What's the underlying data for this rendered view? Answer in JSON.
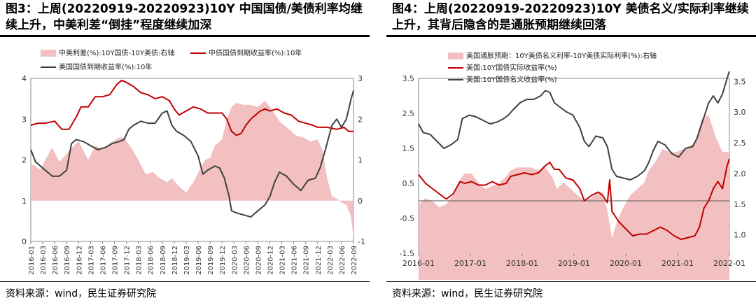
{
  "chart_data": [
    {
      "type": "line",
      "title": "图3：上周(20220919-20220923)10Y 中国国债/美债利率均继续上升，中美利差“倒挂”程度继续加深",
      "source": "资料来源：wind，民生证券研究院",
      "x_ticks": [
        "2016-01",
        "2016-03",
        "2016-06",
        "2016-09",
        "2016-12",
        "2017-03",
        "2017-06",
        "2017-09",
        "2017-12",
        "2018-03",
        "2018-06",
        "2018-09",
        "2018-12",
        "2019-03",
        "2019-06",
        "2019-09",
        "2019-12",
        "2020-03",
        "2020-06",
        "2020-09",
        "2020-12",
        "2021-03",
        "2021-06",
        "2021-09",
        "2021-12",
        "2022-03",
        "2022-06",
        "2022-09"
      ],
      "y_left": {
        "ticks": [
          0,
          1,
          2,
          3,
          4
        ],
        "range": [
          0,
          4
        ]
      },
      "y_right": {
        "ticks": [
          -1,
          0,
          1,
          2,
          3
        ],
        "range": [
          -1,
          3
        ]
      },
      "legend": [
        "中美利差(%):10Y国债-10Y美债:右轴",
        "中债国债到期收益率(%):10年",
        "美国国债到期收益率(%):10年"
      ],
      "x_range": [
        2016.0,
        2022.75
      ],
      "series": [
        {
          "name": "中美利差(%):10Y国债-10Y美债:右轴",
          "style": "area",
          "color": "#f2c0c0",
          "axis": "right",
          "x": [
            2016.0,
            2016.1,
            2016.2,
            2016.3,
            2016.45,
            2016.6,
            2016.75,
            2016.9,
            2017.0,
            2017.2,
            2017.35,
            2017.5,
            2017.7,
            2017.85,
            2017.95,
            2018.1,
            2018.25,
            2018.4,
            2018.55,
            2018.7,
            2018.85,
            2018.95,
            2019.1,
            2019.25,
            2019.4,
            2019.55,
            2019.65,
            2019.75,
            2019.85,
            2020.0,
            2020.1,
            2020.2,
            2020.3,
            2020.45,
            2020.6,
            2020.75,
            2020.9,
            2021.0,
            2021.2,
            2021.4,
            2021.55,
            2021.7,
            2021.85,
            2022.0,
            2022.1,
            2022.2,
            2022.3,
            2022.4,
            2022.5,
            2022.6,
            2022.7,
            2022.75
          ],
          "y": [
            0.9,
            0.85,
            0.75,
            1.0,
            1.3,
            0.95,
            1.15,
            1.35,
            1.45,
            1.0,
            1.35,
            1.25,
            1.45,
            1.55,
            1.55,
            1.3,
            1.0,
            0.65,
            0.7,
            0.55,
            0.45,
            0.55,
            0.35,
            0.2,
            0.45,
            0.8,
            1.0,
            1.05,
            1.35,
            1.5,
            2.0,
            2.3,
            2.4,
            2.35,
            2.35,
            2.3,
            2.45,
            2.3,
            1.95,
            1.75,
            1.6,
            1.55,
            1.45,
            1.5,
            1.25,
            0.55,
            0.1,
            0.05,
            -0.05,
            -0.1,
            -0.4,
            -0.9
          ]
        },
        {
          "name": "中债国债到期收益率(%):10年",
          "style": "line",
          "color": "#c00000",
          "axis": "left",
          "x": [
            2016.0,
            2016.15,
            2016.3,
            2016.5,
            2016.65,
            2016.8,
            2016.95,
            2017.05,
            2017.2,
            2017.35,
            2017.5,
            2017.65,
            2017.8,
            2017.9,
            2018.0,
            2018.15,
            2018.3,
            2018.45,
            2018.6,
            2018.75,
            2018.9,
            2019.0,
            2019.1,
            2019.25,
            2019.4,
            2019.55,
            2019.7,
            2019.85,
            2020.0,
            2020.1,
            2020.2,
            2020.3,
            2020.4,
            2020.5,
            2020.6,
            2020.7,
            2020.8,
            2020.9,
            2021.0,
            2021.15,
            2021.3,
            2021.45,
            2021.6,
            2021.75,
            2021.9,
            2022.0,
            2022.2,
            2022.4,
            2022.55,
            2022.65,
            2022.75
          ],
          "y": [
            2.85,
            2.9,
            2.9,
            2.95,
            2.75,
            2.75,
            3.05,
            3.3,
            3.3,
            3.55,
            3.55,
            3.6,
            3.85,
            3.95,
            3.9,
            3.8,
            3.65,
            3.6,
            3.5,
            3.55,
            3.45,
            3.25,
            3.1,
            3.2,
            3.3,
            3.25,
            3.15,
            3.15,
            3.15,
            3.0,
            2.7,
            2.6,
            2.65,
            2.85,
            3.0,
            3.1,
            3.2,
            3.25,
            3.2,
            3.25,
            3.15,
            3.1,
            2.95,
            2.9,
            2.85,
            2.8,
            2.8,
            2.75,
            2.8,
            2.7,
            2.7
          ]
        },
        {
          "name": "美国国债到期收益率(%):10年",
          "style": "line",
          "color": "#404040",
          "axis": "left",
          "x": [
            2016.0,
            2016.1,
            2016.2,
            2016.3,
            2016.45,
            2016.6,
            2016.75,
            2016.85,
            2016.95,
            2017.1,
            2017.25,
            2017.4,
            2017.55,
            2017.7,
            2017.85,
            2017.95,
            2018.05,
            2018.15,
            2018.3,
            2018.45,
            2018.6,
            2018.75,
            2018.85,
            2018.95,
            2019.05,
            2019.2,
            2019.35,
            2019.5,
            2019.6,
            2019.7,
            2019.85,
            2019.95,
            2020.05,
            2020.15,
            2020.2,
            2020.3,
            2020.45,
            2020.6,
            2020.75,
            2020.9,
            2021.0,
            2021.1,
            2021.2,
            2021.35,
            2021.5,
            2021.65,
            2021.8,
            2021.95,
            2022.05,
            2022.15,
            2022.3,
            2022.4,
            2022.5,
            2022.6,
            2022.7,
            2022.75
          ],
          "y": [
            2.25,
            1.95,
            1.85,
            1.75,
            1.6,
            1.6,
            1.75,
            2.4,
            2.5,
            2.45,
            2.35,
            2.25,
            2.3,
            2.4,
            2.45,
            2.5,
            2.75,
            2.85,
            2.95,
            2.9,
            2.9,
            3.15,
            3.2,
            2.85,
            2.7,
            2.6,
            2.45,
            2.1,
            1.65,
            1.75,
            1.85,
            1.8,
            1.55,
            1.1,
            0.75,
            0.7,
            0.65,
            0.6,
            0.75,
            0.9,
            1.1,
            1.45,
            1.7,
            1.6,
            1.4,
            1.25,
            1.5,
            1.55,
            1.8,
            2.2,
            2.85,
            3.0,
            2.8,
            3.0,
            3.5,
            3.7
          ]
        }
      ]
    },
    {
      "type": "line",
      "title": "图4：上周(20220919-20220923)10Y 美债名义/实际利率继续上升，其背后隐含的是通胀预期继续回落",
      "source": "资料来源：wind，民生证券研究院",
      "x_ticks": [
        "2016-01",
        "2017-01",
        "2018-01",
        "2019-01",
        "2020-01",
        "2021-01",
        "2022-01"
      ],
      "y_left": {
        "ticks": [
          -1.5,
          -0.5,
          0.5,
          1.5,
          2.5,
          3.5
        ],
        "range": [
          -1.5,
          3.5
        ]
      },
      "y_right": {
        "ticks": [
          1.0,
          1.5,
          2.0,
          2.5,
          3.0,
          3.5
        ],
        "range": [
          0.7,
          3.55
        ]
      },
      "legend": [
        "美国通胀预期：10Y美债名义利率-10Y美债实际利率(%):右轴",
        "美国:10Y国债实际收益率(%)",
        "美国:10Y国债名义收益率(%)"
      ],
      "x_range": [
        2016.0,
        2022.75
      ],
      "series": [
        {
          "name": "美国通胀预期：10Y美债名义利率-10Y美债实际利率(%):右轴",
          "style": "area",
          "color": "#f2c0c0",
          "axis": "right",
          "x": [
            2016.0,
            2016.15,
            2016.3,
            2016.45,
            2016.6,
            2016.75,
            2016.9,
            2017.0,
            2017.15,
            2017.3,
            2017.45,
            2017.6,
            2017.75,
            2017.9,
            2018.0,
            2018.15,
            2018.3,
            2018.45,
            2018.6,
            2018.75,
            2018.9,
            2019.0,
            2019.15,
            2019.3,
            2019.45,
            2019.6,
            2019.75,
            2019.9,
            2020.0,
            2020.1,
            2020.2,
            2020.3,
            2020.45,
            2020.6,
            2020.75,
            2020.9,
            2021.0,
            2021.15,
            2021.3,
            2021.45,
            2021.6,
            2021.75,
            2021.9,
            2022.0,
            2022.15,
            2022.3,
            2022.45,
            2022.6,
            2022.75
          ],
          "y": [
            1.5,
            1.6,
            1.55,
            1.45,
            1.5,
            1.65,
            1.9,
            2.0,
            2.0,
            1.85,
            1.75,
            1.8,
            1.85,
            1.95,
            2.05,
            2.1,
            2.1,
            2.1,
            2.05,
            2.1,
            1.95,
            1.75,
            1.85,
            1.75,
            1.65,
            1.55,
            1.6,
            1.7,
            1.7,
            1.4,
            0.95,
            1.2,
            1.45,
            1.65,
            1.75,
            1.85,
            2.05,
            2.2,
            2.4,
            2.35,
            2.35,
            2.4,
            2.45,
            2.5,
            2.9,
            2.95,
            2.6,
            2.35,
            2.35
          ]
        },
        {
          "name": "美国:10Y国债实际收益率(%)",
          "style": "line",
          "color": "#c00000",
          "axis": "left",
          "x": [
            2016.0,
            2016.15,
            2016.3,
            2016.45,
            2016.6,
            2016.75,
            2016.9,
            2017.0,
            2017.15,
            2017.3,
            2017.45,
            2017.6,
            2017.75,
            2017.9,
            2018.0,
            2018.15,
            2018.3,
            2018.45,
            2018.6,
            2018.75,
            2018.85,
            2018.95,
            2019.05,
            2019.2,
            2019.35,
            2019.5,
            2019.6,
            2019.75,
            2019.9,
            2020.0,
            2020.1,
            2020.15,
            2020.2,
            2020.35,
            2020.5,
            2020.65,
            2020.8,
            2020.95,
            2021.1,
            2021.25,
            2021.4,
            2021.55,
            2021.7,
            2021.85,
            2022.0,
            2022.1,
            2022.2,
            2022.3,
            2022.4,
            2022.5,
            2022.6,
            2022.7,
            2022.75
          ],
          "y": [
            0.75,
            0.5,
            0.35,
            0.2,
            0.05,
            0.2,
            0.55,
            0.5,
            0.55,
            0.45,
            0.45,
            0.55,
            0.45,
            0.5,
            0.7,
            0.75,
            0.8,
            0.75,
            0.8,
            1.0,
            1.1,
            0.9,
            0.9,
            0.65,
            0.6,
            0.35,
            0.0,
            0.15,
            0.25,
            0.15,
            -0.05,
            0.6,
            -0.3,
            -0.6,
            -0.8,
            -1.0,
            -0.95,
            -0.95,
            -0.85,
            -0.75,
            -0.85,
            -1.0,
            -1.1,
            -1.05,
            -1.0,
            -0.75,
            -0.2,
            0.0,
            0.35,
            0.55,
            0.35,
            1.0,
            1.2
          ]
        },
        {
          "name": "美国:10Y国债名义收益率(%)",
          "style": "line",
          "color": "#404040",
          "axis": "left",
          "x": [
            2016.0,
            2016.1,
            2016.25,
            2016.4,
            2016.55,
            2016.7,
            2016.85,
            2016.95,
            2017.1,
            2017.25,
            2017.4,
            2017.55,
            2017.7,
            2017.85,
            2017.95,
            2018.05,
            2018.2,
            2018.35,
            2018.5,
            2018.65,
            2018.75,
            2018.85,
            2018.95,
            2019.05,
            2019.2,
            2019.35,
            2019.5,
            2019.6,
            2019.7,
            2019.85,
            2020.0,
            2020.1,
            2020.2,
            2020.3,
            2020.45,
            2020.6,
            2020.75,
            2020.9,
            2021.0,
            2021.1,
            2021.2,
            2021.35,
            2021.5,
            2021.65,
            2021.8,
            2021.95,
            2022.05,
            2022.15,
            2022.3,
            2022.4,
            2022.5,
            2022.6,
            2022.7,
            2022.75
          ],
          "y": [
            2.2,
            1.95,
            1.9,
            1.7,
            1.5,
            1.6,
            1.75,
            2.35,
            2.45,
            2.4,
            2.3,
            2.2,
            2.25,
            2.35,
            2.45,
            2.6,
            2.8,
            2.9,
            2.9,
            3.0,
            3.15,
            3.1,
            2.8,
            2.7,
            2.55,
            2.45,
            2.1,
            1.7,
            1.55,
            1.85,
            1.8,
            1.55,
            0.9,
            0.7,
            0.65,
            0.6,
            0.7,
            0.85,
            1.1,
            1.45,
            1.7,
            1.6,
            1.35,
            1.25,
            1.5,
            1.55,
            1.8,
            2.2,
            2.8,
            3.0,
            2.8,
            3.05,
            3.5,
            3.7
          ]
        }
      ]
    }
  ]
}
